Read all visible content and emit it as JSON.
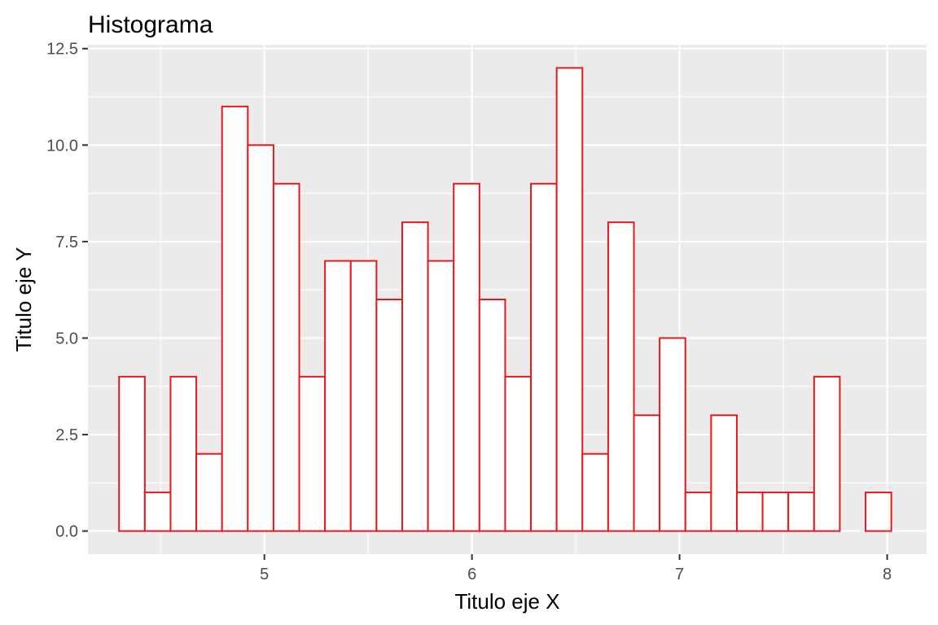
{
  "chart_data": {
    "type": "bar",
    "title": "Histograma",
    "xlabel": "Titulo eje X",
    "ylabel": "Titulo eje Y",
    "xlim": [
      4.15,
      8.19
    ],
    "ylim": [
      -0.6,
      12.6
    ],
    "x_ticks": [
      5,
      6,
      7,
      8
    ],
    "x_tick_labels": [
      "5",
      "6",
      "7",
      "8"
    ],
    "y_ticks": [
      0,
      2.5,
      5,
      7.5,
      10,
      12.5
    ],
    "y_tick_labels": [
      "0.0",
      "2.5",
      "5.0",
      "7.5",
      "10.0",
      "12.5"
    ],
    "bin_width": 0.124,
    "bin_start": 4.3,
    "counts": [
      4,
      1,
      4,
      2,
      11,
      10,
      9,
      4,
      7,
      7,
      6,
      8,
      7,
      9,
      6,
      4,
      9,
      12,
      2,
      8,
      3,
      5,
      1,
      3,
      1,
      1,
      1,
      4,
      0,
      1
    ],
    "bar_fill": "#ffffff",
    "bar_outline": "#e41a1c",
    "panel_background": "#ebebeb",
    "grid_color": "#ffffff",
    "grid": true,
    "legend": "none"
  }
}
